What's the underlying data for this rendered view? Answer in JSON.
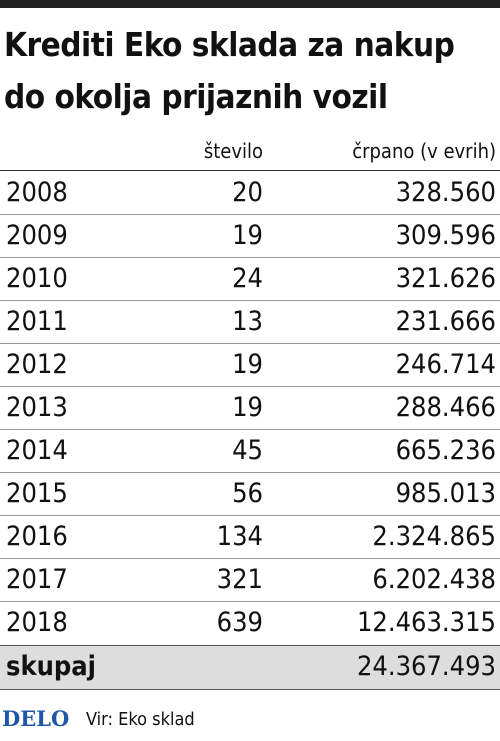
{
  "header": {
    "title_lines": [
      "Krediti Eko sklada za nakup",
      "do okolja prijaznih vozil"
    ]
  },
  "table": {
    "columns": [
      "",
      "število",
      "črpano (v evrih)"
    ],
    "rows": [
      [
        "2008",
        20,
        "328.560"
      ],
      [
        "2009",
        19,
        "309.596"
      ],
      [
        "2010",
        24,
        "321.626"
      ],
      [
        "2011",
        13,
        "231.666"
      ],
      [
        "2012",
        19,
        "246.714"
      ],
      [
        "2013",
        19,
        "288.466"
      ],
      [
        "2014",
        45,
        "665.236"
      ],
      [
        "2015",
        56,
        "985.013"
      ],
      [
        "2016",
        134,
        "2.324.865"
      ],
      [
        "2017",
        321,
        "6.202.438"
      ],
      [
        "2018",
        639,
        "12.463.315"
      ]
    ],
    "total": {
      "label": "skupaj",
      "value": "24.367.493"
    }
  },
  "footer": {
    "brand": "DELO",
    "source": "Vir: Eko sklad"
  }
}
